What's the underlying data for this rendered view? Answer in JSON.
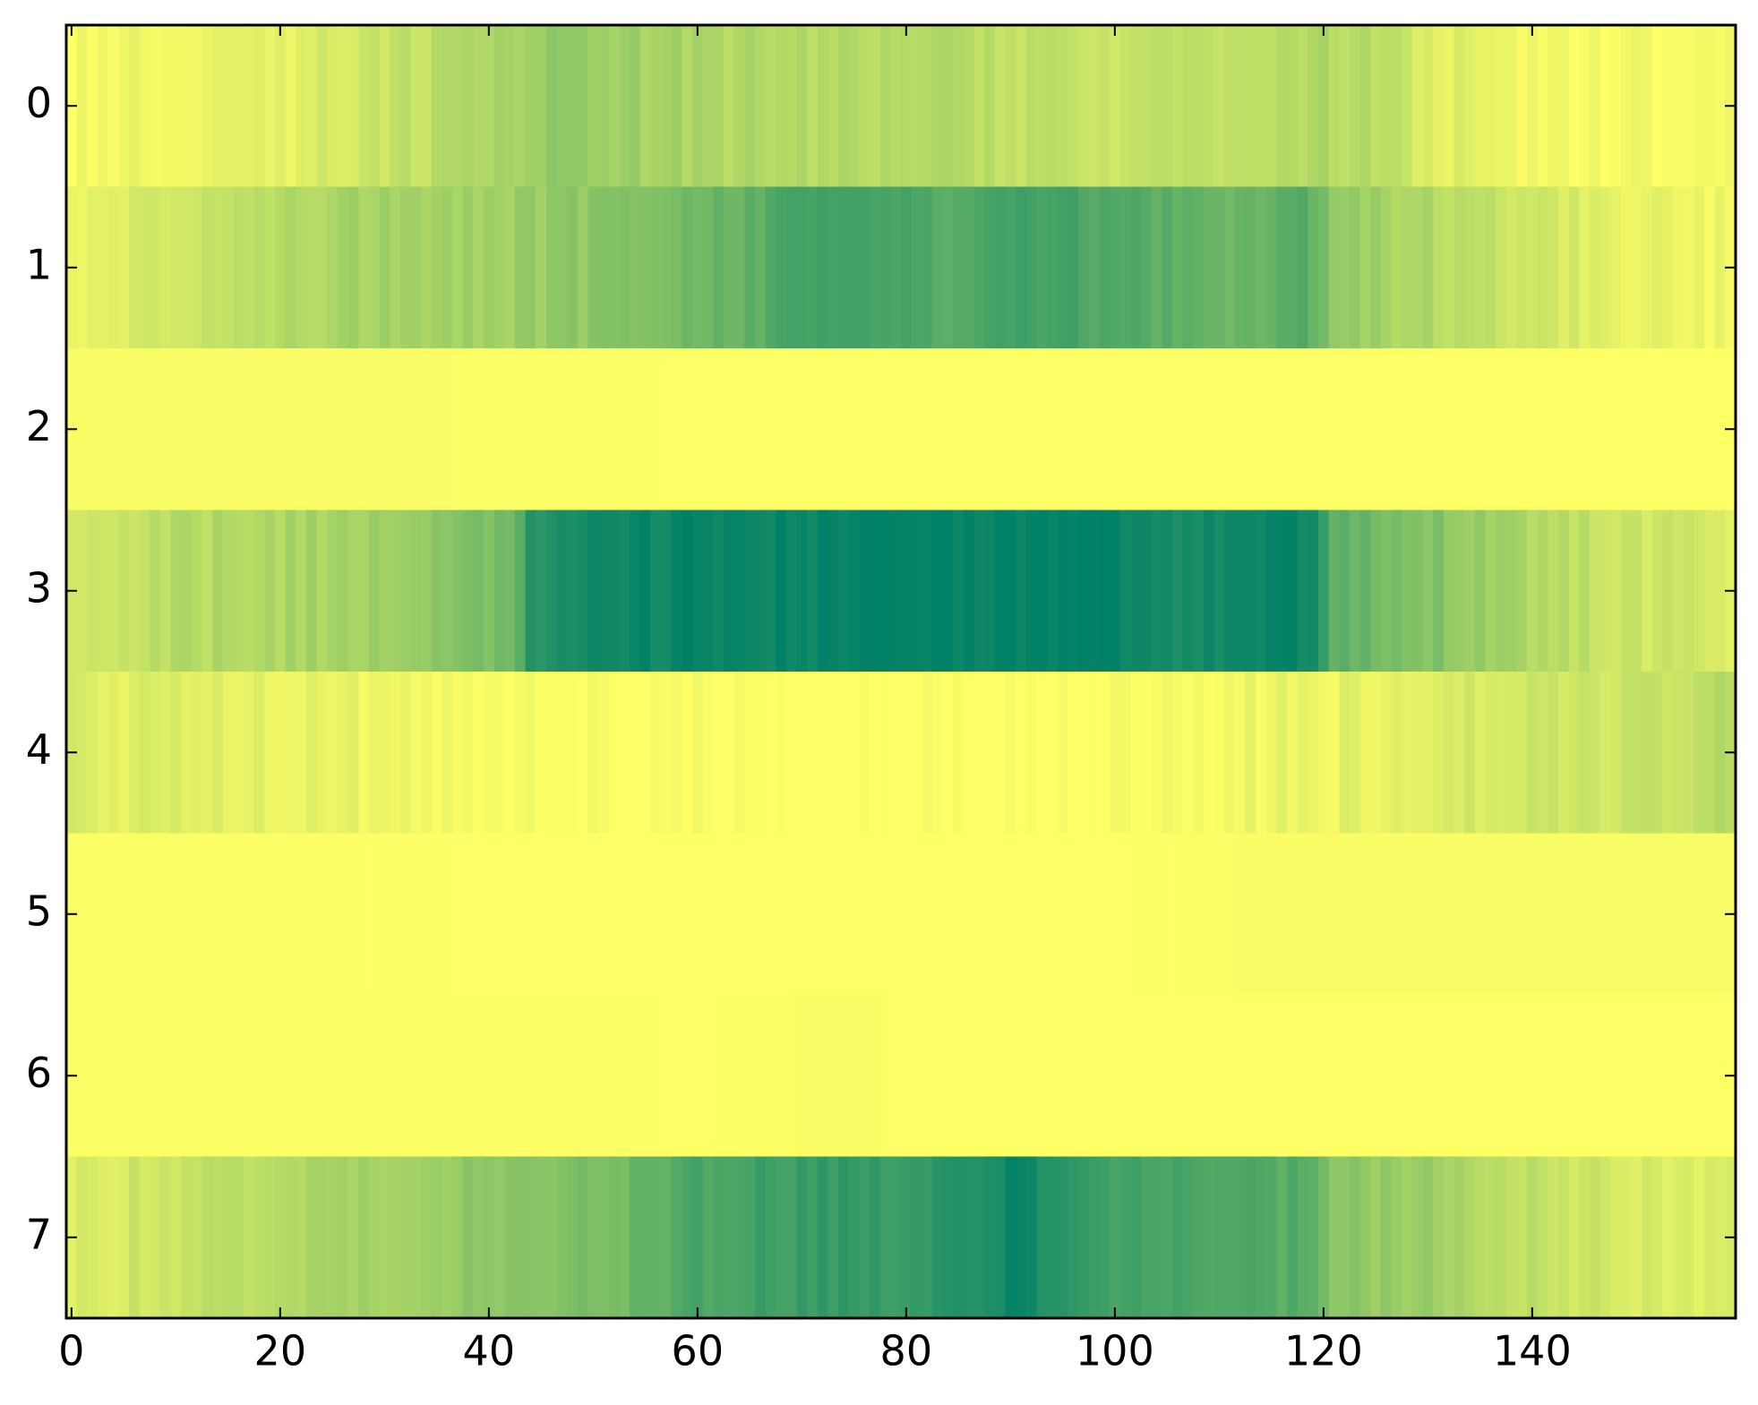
{
  "chart_data": {
    "type": "heatmap",
    "colormap": "summer_r",
    "color_low": "#ffff66",
    "color_high": "#008066",
    "value_range": [
      0,
      1
    ],
    "x_range": [
      -0.5,
      159.5
    ],
    "y_range": [
      -0.5,
      7.5
    ],
    "n_columns": 160,
    "grid": false,
    "x_ticks": [
      0,
      20,
      40,
      60,
      80,
      100,
      120,
      140
    ],
    "y_ticks": [
      0,
      1,
      2,
      3,
      4,
      5,
      6,
      7
    ],
    "rows": [
      {
        "row": 0,
        "profile": [
          [
            0,
            0.04
          ],
          [
            10,
            0.08
          ],
          [
            20,
            0.1
          ],
          [
            30,
            0.22
          ],
          [
            40,
            0.3
          ],
          [
            45,
            0.42
          ],
          [
            50,
            0.4
          ],
          [
            60,
            0.32
          ],
          [
            70,
            0.28
          ],
          [
            80,
            0.3
          ],
          [
            90,
            0.26
          ],
          [
            100,
            0.2
          ],
          [
            110,
            0.22
          ],
          [
            120,
            0.3
          ],
          [
            125,
            0.28
          ],
          [
            130,
            0.14
          ],
          [
            140,
            0.05
          ],
          [
            159,
            0.03
          ]
        ]
      },
      {
        "row": 1,
        "profile": [
          [
            0,
            0.1
          ],
          [
            10,
            0.18
          ],
          [
            20,
            0.3
          ],
          [
            30,
            0.38
          ],
          [
            40,
            0.36
          ],
          [
            50,
            0.44
          ],
          [
            55,
            0.52
          ],
          [
            60,
            0.58
          ],
          [
            65,
            0.62
          ],
          [
            70,
            0.74
          ],
          [
            80,
            0.72
          ],
          [
            85,
            0.66
          ],
          [
            90,
            0.76
          ],
          [
            95,
            0.74
          ],
          [
            100,
            0.68
          ],
          [
            110,
            0.58
          ],
          [
            118,
            0.64
          ],
          [
            122,
            0.4
          ],
          [
            130,
            0.3
          ],
          [
            140,
            0.18
          ],
          [
            150,
            0.1
          ],
          [
            159,
            0.05
          ]
        ]
      },
      {
        "row": 2,
        "profile": [
          [
            0,
            0.02
          ],
          [
            20,
            0.02
          ],
          [
            40,
            0.01
          ],
          [
            60,
            0.0
          ],
          [
            80,
            0.0
          ],
          [
            100,
            0.0
          ],
          [
            120,
            0.0
          ],
          [
            140,
            0.0
          ],
          [
            159,
            0.0
          ]
        ]
      },
      {
        "row": 3,
        "profile": [
          [
            0,
            0.16
          ],
          [
            10,
            0.28
          ],
          [
            20,
            0.32
          ],
          [
            30,
            0.38
          ],
          [
            38,
            0.48
          ],
          [
            42,
            0.52
          ],
          [
            44,
            0.86
          ],
          [
            50,
            0.9
          ],
          [
            55,
            0.95
          ],
          [
            60,
            0.96
          ],
          [
            70,
            0.96
          ],
          [
            80,
            0.97
          ],
          [
            90,
            1.0
          ],
          [
            100,
            0.99
          ],
          [
            105,
            0.9
          ],
          [
            110,
            0.92
          ],
          [
            115,
            0.97
          ],
          [
            119,
            0.95
          ],
          [
            121,
            0.62
          ],
          [
            130,
            0.5
          ],
          [
            140,
            0.3
          ],
          [
            150,
            0.2
          ],
          [
            159,
            0.14
          ]
        ]
      },
      {
        "row": 4,
        "profile": [
          [
            0,
            0.14
          ],
          [
            10,
            0.12
          ],
          [
            20,
            0.1
          ],
          [
            30,
            0.07
          ],
          [
            40,
            0.04
          ],
          [
            45,
            0.01
          ],
          [
            60,
            0.01
          ],
          [
            80,
            0.0
          ],
          [
            100,
            0.0
          ],
          [
            112,
            0.06
          ],
          [
            120,
            0.08
          ],
          [
            130,
            0.14
          ],
          [
            140,
            0.18
          ],
          [
            150,
            0.2
          ],
          [
            159,
            0.28
          ]
        ]
      },
      {
        "row": 5,
        "profile": [
          [
            0,
            0.01
          ],
          [
            20,
            0.01
          ],
          [
            40,
            0.0
          ],
          [
            60,
            0.0
          ],
          [
            80,
            0.0
          ],
          [
            100,
            0.0
          ],
          [
            120,
            0.02
          ],
          [
            140,
            0.02
          ],
          [
            159,
            0.02
          ]
        ]
      },
      {
        "row": 6,
        "profile": [
          [
            0,
            0.01
          ],
          [
            20,
            0.01
          ],
          [
            40,
            0.01
          ],
          [
            60,
            0.0
          ],
          [
            76,
            0.02
          ],
          [
            80,
            0.0
          ],
          [
            100,
            0.0
          ],
          [
            120,
            0.0
          ],
          [
            140,
            0.0
          ],
          [
            159,
            0.0
          ]
        ]
      },
      {
        "row": 7,
        "profile": [
          [
            0,
            0.12
          ],
          [
            10,
            0.22
          ],
          [
            20,
            0.3
          ],
          [
            30,
            0.38
          ],
          [
            40,
            0.44
          ],
          [
            50,
            0.5
          ],
          [
            60,
            0.7
          ],
          [
            70,
            0.78
          ],
          [
            80,
            0.8
          ],
          [
            85,
            0.88
          ],
          [
            90,
            0.94
          ],
          [
            95,
            0.86
          ],
          [
            100,
            0.72
          ],
          [
            110,
            0.68
          ],
          [
            118,
            0.66
          ],
          [
            121,
            0.46
          ],
          [
            130,
            0.38
          ],
          [
            140,
            0.24
          ],
          [
            150,
            0.16
          ],
          [
            159,
            0.12
          ]
        ]
      }
    ]
  }
}
